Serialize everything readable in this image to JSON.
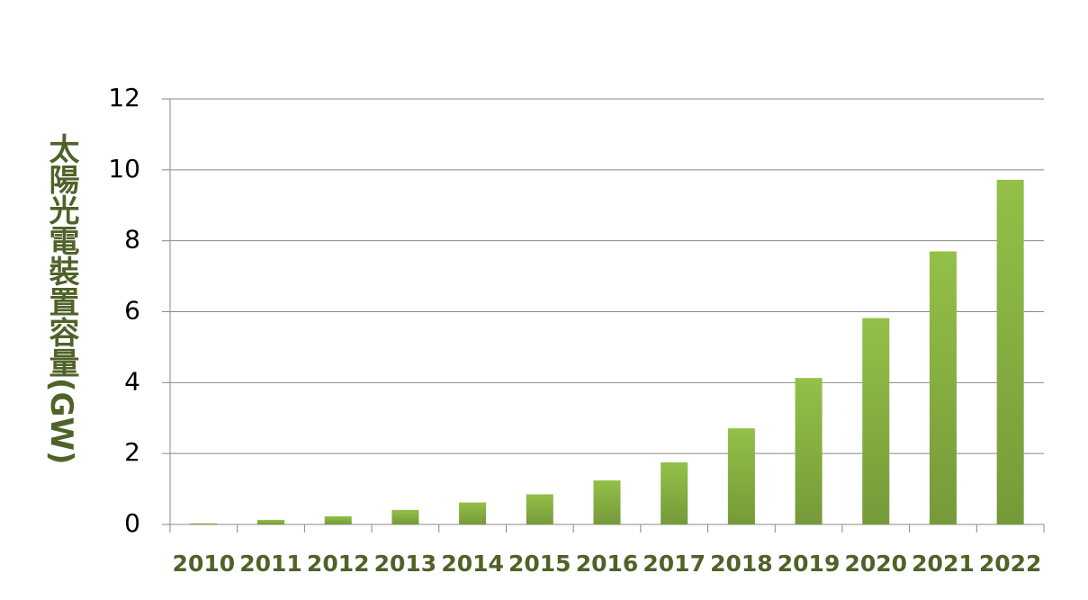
{
  "chart_data": {
    "type": "bar",
    "y_label": "太陽光電裝置容量(GW)",
    "categories": [
      "2010",
      "2011",
      "2012",
      "2013",
      "2014",
      "2015",
      "2016",
      "2017",
      "2018",
      "2019",
      "2020",
      "2021",
      "2022"
    ],
    "values": [
      0.03,
      0.13,
      0.23,
      0.41,
      0.62,
      0.85,
      1.24,
      1.75,
      2.71,
      4.13,
      5.82,
      7.7,
      9.72
    ],
    "color": "#93c047",
    "ylim": [
      0,
      12
    ],
    "yticks": [
      0,
      2,
      4,
      6,
      8,
      10,
      12
    ],
    "grid": true
  }
}
